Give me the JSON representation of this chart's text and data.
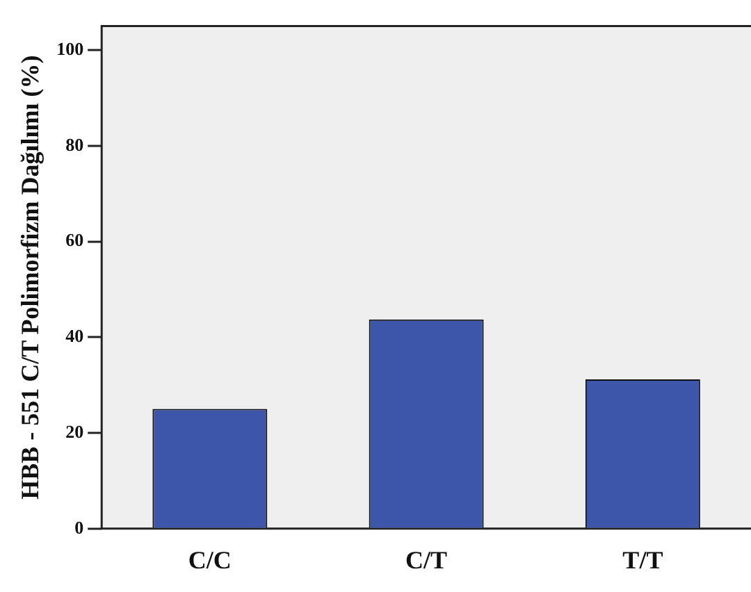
{
  "chart_data": {
    "type": "bar",
    "ylabel": "HBB - 551 C/T Polimorfizm Dağılımı (%)",
    "categories": [
      "C/C",
      "C/T",
      "T/T"
    ],
    "values": [
      25,
      43.7,
      31.2
    ],
    "color": "#3d56aa",
    "ylim": [
      0,
      105
    ],
    "yticks": [
      0,
      20,
      40,
      60,
      80,
      100
    ],
    "grid": false,
    "legend": false
  }
}
